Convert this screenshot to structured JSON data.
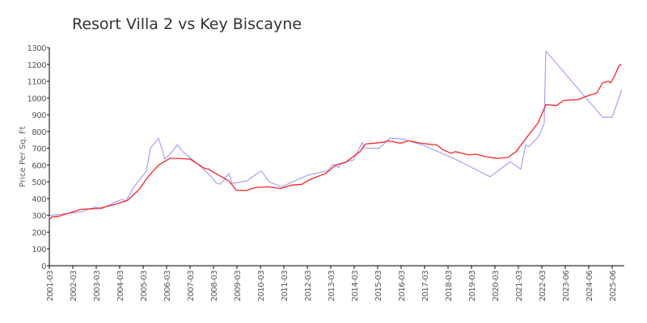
{
  "chart_data": {
    "type": "line",
    "title": "Resort Villa 2 vs Key Biscayne",
    "xlabel": "",
    "ylabel": "Price Per Sq. Ft",
    "ylim": [
      0,
      1300
    ],
    "yticks": [
      0,
      100,
      200,
      300,
      400,
      500,
      600,
      700,
      800,
      900,
      1000,
      1100,
      1200,
      1300
    ],
    "xlim": [
      0,
      24.5
    ],
    "x_unit": "tick index (one tick per labeled date)",
    "xtick_labels": [
      "2001-03",
      "2002-03",
      "2003-03",
      "2004-03",
      "2005-03",
      "2006-03",
      "2007-03",
      "2008-03",
      "2009-03",
      "2010-03",
      "2011-03",
      "2012-03",
      "2013-03",
      "2014-03",
      "2015-03",
      "2016-03",
      "2017-03",
      "2018-03",
      "2019-03",
      "2020-03",
      "2021-03",
      "2022-03",
      "2023-06",
      "2024-06",
      "2025-06"
    ],
    "grid": false,
    "legend": "none",
    "series": [
      {
        "name": "Resort Villa 2",
        "color": "#9999ff",
        "points": [
          [
            0,
            285
          ],
          [
            0.03,
            300
          ],
          [
            1.34,
            320
          ],
          [
            1.97,
            350
          ],
          [
            2.21,
            337
          ],
          [
            2.9,
            385
          ],
          [
            3.14,
            395
          ],
          [
            3.24,
            380
          ],
          [
            3.59,
            465
          ],
          [
            4.14,
            565
          ],
          [
            4.31,
            700
          ],
          [
            4.66,
            760
          ],
          [
            4.93,
            635
          ],
          [
            5.24,
            680
          ],
          [
            5.45,
            720
          ],
          [
            5.76,
            670
          ],
          [
            6.17,
            625
          ],
          [
            6.69,
            560
          ],
          [
            6.9,
            530
          ],
          [
            7.1,
            495
          ],
          [
            7.28,
            485
          ],
          [
            7.66,
            550
          ],
          [
            7.79,
            490
          ],
          [
            8.41,
            505
          ],
          [
            9.03,
            565
          ],
          [
            9.38,
            500
          ],
          [
            9.9,
            470
          ],
          [
            11.03,
            540
          ],
          [
            11.86,
            565
          ],
          [
            12.1,
            605
          ],
          [
            12.34,
            585
          ],
          [
            12.45,
            612
          ],
          [
            12.97,
            630
          ],
          [
            13.34,
            735
          ],
          [
            13.41,
            700
          ],
          [
            14.07,
            700
          ],
          [
            14.52,
            760
          ],
          [
            15.07,
            755
          ],
          [
            16,
            715
          ],
          [
            17.31,
            635
          ],
          [
            18.79,
            530
          ],
          [
            19.66,
            620
          ],
          [
            20.1,
            575
          ],
          [
            20.31,
            720
          ],
          [
            20.45,
            710
          ],
          [
            20.86,
            770
          ],
          [
            21.1,
            850
          ],
          [
            21.17,
            1280
          ],
          [
            23.59,
            885
          ],
          [
            24,
            885
          ],
          [
            24.41,
            1050
          ]
        ]
      },
      {
        "name": "Key Biscayne",
        "color": "#ff2222",
        "points": [
          [
            0,
            275
          ],
          [
            0.1,
            290
          ],
          [
            0.41,
            295
          ],
          [
            1,
            320
          ],
          [
            1.34,
            335
          ],
          [
            1.97,
            340
          ],
          [
            2.24,
            345
          ],
          [
            2.9,
            370
          ],
          [
            3.34,
            390
          ],
          [
            3.83,
            455
          ],
          [
            4.21,
            530
          ],
          [
            4.66,
            600
          ],
          [
            5.14,
            640
          ],
          [
            5.48,
            640
          ],
          [
            6,
            635
          ],
          [
            6.62,
            580
          ],
          [
            6.79,
            575
          ],
          [
            7.21,
            540
          ],
          [
            7.66,
            505
          ],
          [
            7.97,
            450
          ],
          [
            8.41,
            448
          ],
          [
            8.76,
            465
          ],
          [
            9.34,
            470
          ],
          [
            9.86,
            460
          ],
          [
            10.31,
            480
          ],
          [
            10.76,
            485
          ],
          [
            11.21,
            520
          ],
          [
            11.79,
            550
          ],
          [
            12.21,
            600
          ],
          [
            12.62,
            615
          ],
          [
            13.24,
            680
          ],
          [
            13.48,
            725
          ],
          [
            14.21,
            735
          ],
          [
            14.45,
            745
          ],
          [
            14.97,
            730
          ],
          [
            15.31,
            745
          ],
          [
            15.83,
            730
          ],
          [
            16.52,
            720
          ],
          [
            16.79,
            690
          ],
          [
            17.14,
            670
          ],
          [
            17.31,
            680
          ],
          [
            17.9,
            660
          ],
          [
            18.17,
            665
          ],
          [
            18.59,
            650
          ],
          [
            19.1,
            640
          ],
          [
            19.55,
            645
          ],
          [
            19.9,
            680
          ],
          [
            20.38,
            770
          ],
          [
            20.83,
            850
          ],
          [
            21.17,
            960
          ],
          [
            21.62,
            955
          ],
          [
            21.93,
            985
          ],
          [
            22.55,
            990
          ],
          [
            22.9,
            1010
          ],
          [
            23.34,
            1030
          ],
          [
            23.59,
            1090
          ],
          [
            23.83,
            1100
          ],
          [
            23.93,
            1090
          ],
          [
            24.1,
            1130
          ],
          [
            24.28,
            1190
          ],
          [
            24.38,
            1200
          ]
        ]
      }
    ]
  }
}
